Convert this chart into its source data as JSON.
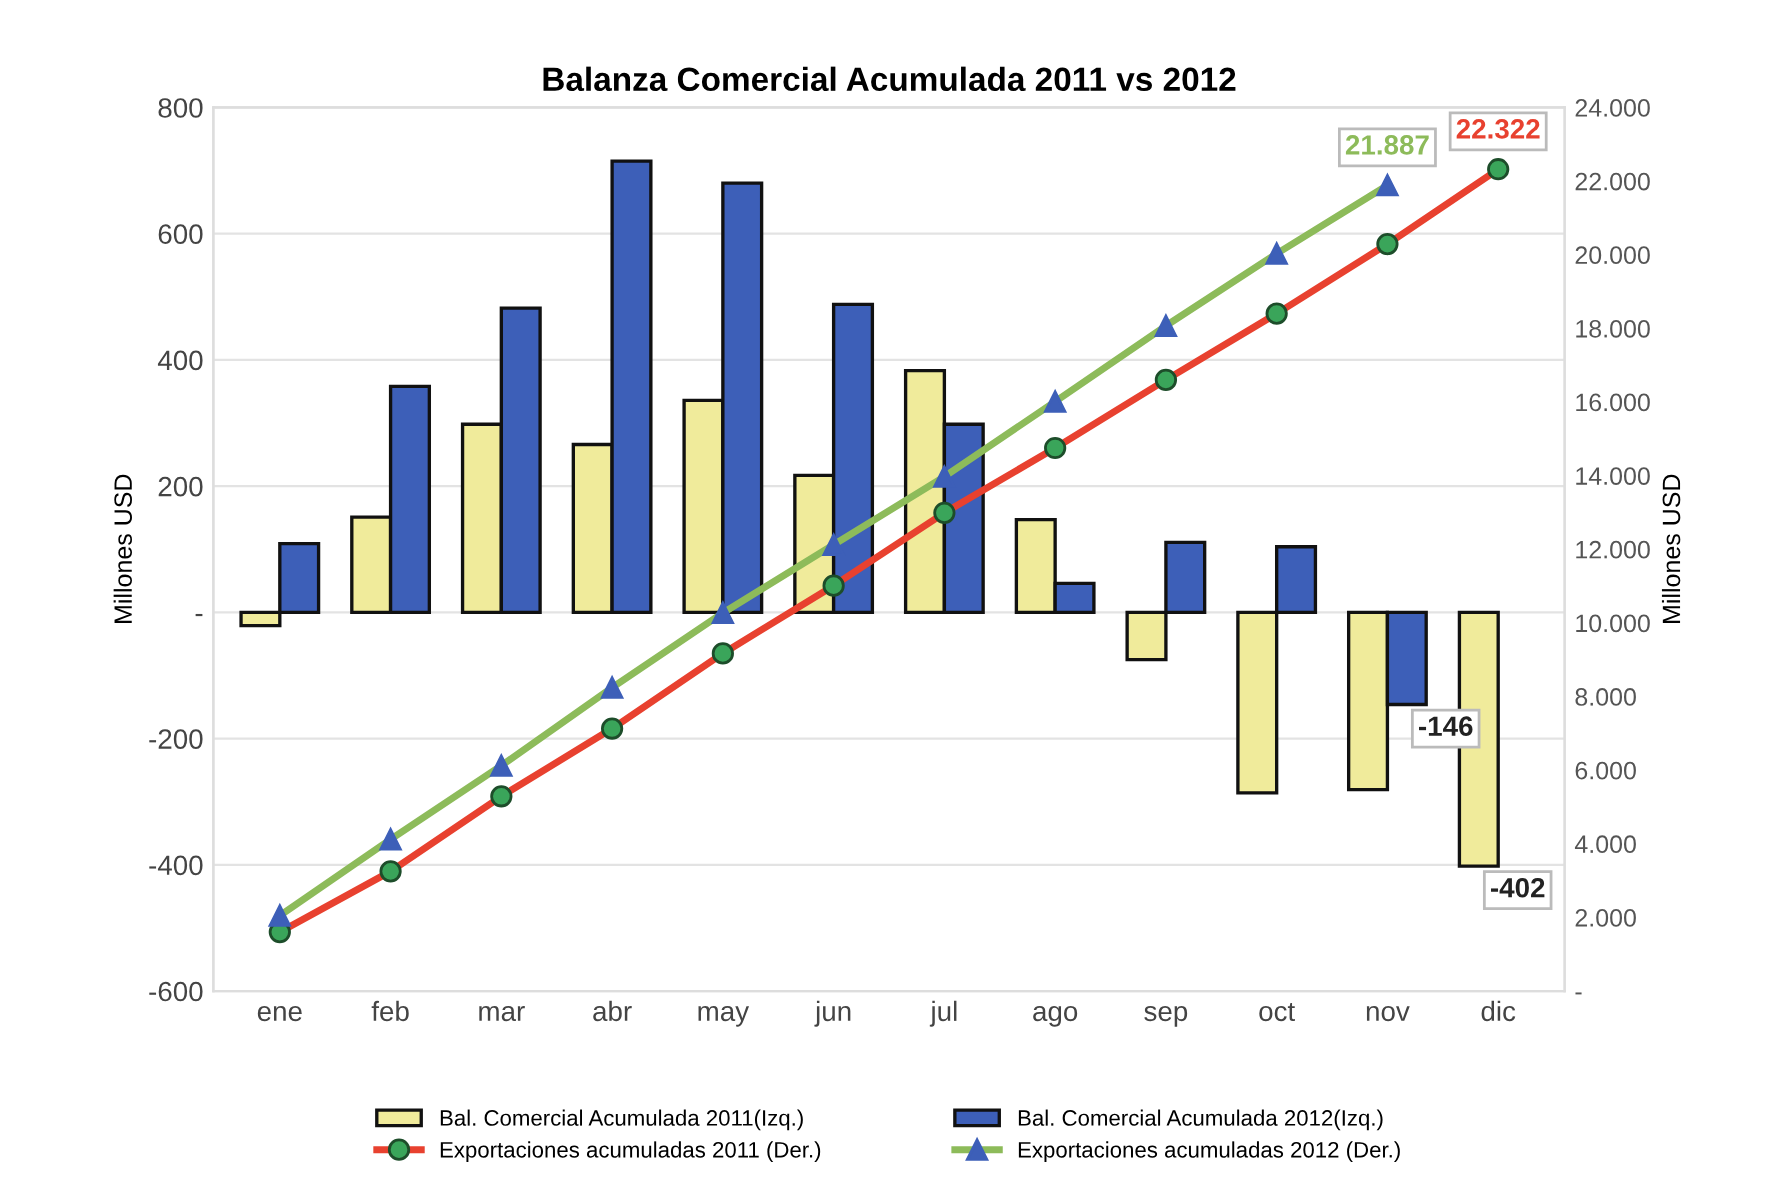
{
  "chart_data": {
    "type": "bar",
    "title": "Balanza Comercial Acumulada 2011 vs 2012",
    "ylabel": "Millones USD",
    "y2label": "Millones USD",
    "categories": [
      "ene",
      "feb",
      "mar",
      "abr",
      "may",
      "jun",
      "jul",
      "ago",
      "sep",
      "oct",
      "nov",
      "dic"
    ],
    "series": [
      {
        "name": "Bal. Comercial Acumulada 2011(Izq.)",
        "color": "#f0eb9b",
        "values": [
          -21,
          151,
          298,
          266,
          336,
          217,
          383,
          147,
          -75,
          -286,
          -281,
          -402
        ],
        "value_labels": [
          null,
          null,
          null,
          null,
          null,
          null,
          null,
          null,
          null,
          null,
          null,
          "-402"
        ]
      },
      {
        "name": "Bal. Comercial Acumulada 2012(Izq.)",
        "color": "#3d5fb8",
        "values": [
          109,
          358,
          482,
          715,
          680,
          488,
          298,
          46,
          111,
          104,
          -146,
          null
        ],
        "value_labels": [
          null,
          null,
          null,
          null,
          null,
          null,
          null,
          null,
          null,
          null,
          "-146",
          null
        ]
      },
      {
        "name": "Exportaciones acumuladas 2011 (Der.)",
        "type": "line",
        "axis": "y2",
        "color": "#e8412f",
        "marker": "circle",
        "values": [
          1600,
          3250,
          5290,
          7130,
          9170,
          11010,
          12990,
          14750,
          16600,
          18400,
          20290,
          22322
        ],
        "value_labels": [
          null,
          null,
          null,
          null,
          null,
          null,
          null,
          null,
          null,
          null,
          null,
          "22.322"
        ]
      },
      {
        "name": "Exportaciones acumuladas 2012 (Der.)",
        "type": "line",
        "axis": "y2",
        "color": "#8dbb5a",
        "marker": "triangle",
        "values": [
          2050,
          4120,
          6120,
          8240,
          10270,
          12120,
          13970,
          16010,
          18070,
          20030,
          21887,
          null
        ],
        "value_labels": [
          null,
          null,
          null,
          null,
          null,
          null,
          null,
          null,
          null,
          null,
          "21.887",
          null
        ]
      }
    ],
    "ylim": [
      -600,
      800
    ],
    "yticks": [
      -600,
      -400,
      -200,
      {
        "value": 0,
        "label": "-"
      },
      200,
      400,
      600,
      800
    ],
    "y2lim": [
      0,
      24000
    ],
    "y2ticks": [
      {
        "value": 0,
        "label": "-"
      },
      {
        "value": 2000,
        "label": "2.000"
      },
      {
        "value": 4000,
        "label": "4.000"
      },
      {
        "value": 6000,
        "label": "6.000"
      },
      {
        "value": 8000,
        "label": "8.000"
      },
      {
        "value": 10000,
        "label": "10.000"
      },
      {
        "value": 12000,
        "label": "12.000"
      },
      {
        "value": 14000,
        "label": "14.000"
      },
      {
        "value": 16000,
        "label": "16.000"
      },
      {
        "value": 18000,
        "label": "18.000"
      },
      {
        "value": 20000,
        "label": "20.000"
      },
      {
        "value": 22000,
        "label": "22.000"
      },
      {
        "value": 24000,
        "label": "24.000"
      }
    ],
    "grid": "y",
    "legend": "bottom"
  }
}
